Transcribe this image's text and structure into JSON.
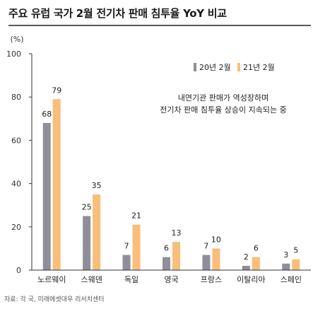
{
  "title": "주요 유럽 국가 2월 전기차 판매 침투율 YoY 비교",
  "source": "자료: 각 국, 미래에셋대우 리서치센터",
  "colors": {
    "series1": "#8f8e99",
    "series2": "#f8be7a",
    "axis": "#333333",
    "title_rule": "#5a5a5a"
  },
  "chart_data": {
    "type": "bar",
    "unit_label": "(%)",
    "categories": [
      "노르웨이",
      "스웨덴",
      "독일",
      "영국",
      "프랑스",
      "이탈리아",
      "스페인"
    ],
    "series": [
      {
        "name": "20년 2월",
        "values": [
          68,
          25,
          7,
          6,
          7,
          2,
          3
        ]
      },
      {
        "name": "21년 2월",
        "values": [
          79,
          35,
          21,
          13,
          10,
          6,
          5
        ]
      }
    ],
    "ylim": [
      0,
      100
    ],
    "yticks": [
      0,
      20,
      40,
      60,
      80,
      100
    ],
    "grid": false,
    "legend_position": "top-right",
    "annotation": [
      "내연기관 판매가 역성장하며",
      "전기차 판매 침투율 상승이 지속되는 중"
    ]
  }
}
